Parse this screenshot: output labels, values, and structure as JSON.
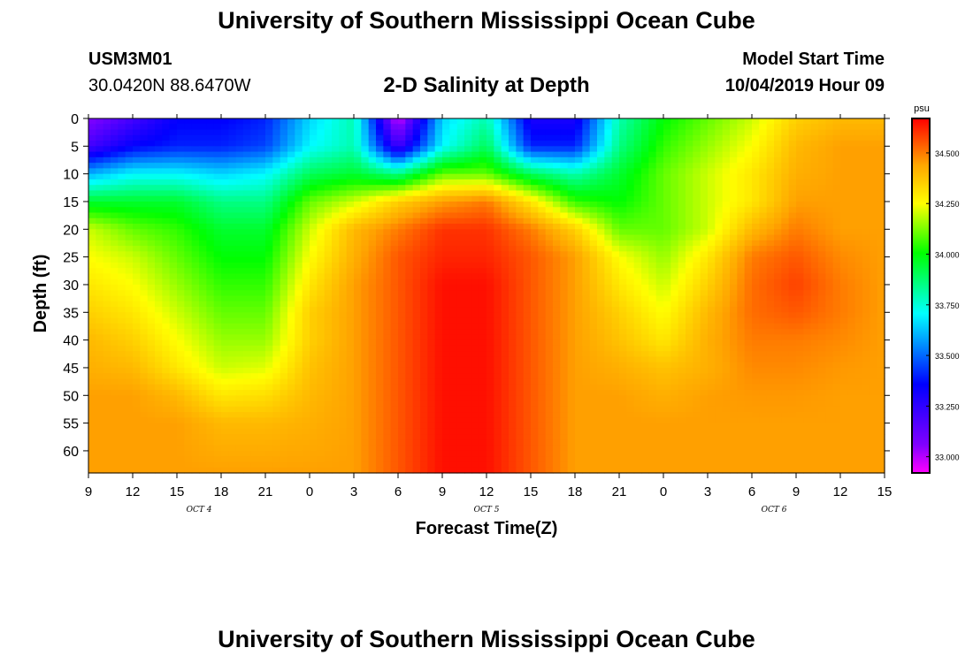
{
  "header": {
    "title": "University of Southern Mississippi Ocean Cube",
    "station_id": "USM3M01",
    "station_coords": "30.0420N 88.6470W",
    "plot_title": "2-D Salinity at Depth",
    "start_time_label": "Model Start Time",
    "start_time_value": "10/04/2019 Hour 09"
  },
  "footer": {
    "title": "University of Southern Mississippi Ocean Cube"
  },
  "colors": {
    "background": "#ffffff",
    "text": "#000000",
    "colormap": [
      "#ff00ff",
      "#8000ff",
      "#0000ff",
      "#00ffff",
      "#00ff00",
      "#ffff00",
      "#ffa500",
      "#ff0000"
    ]
  },
  "chart_data": {
    "type": "heatmap",
    "title": "2-D Salinity at Depth",
    "xlabel": "Forecast Time(Z)",
    "ylabel": "Depth (ft)",
    "x_range_hours": [
      0,
      54
    ],
    "x_ticks": [
      {
        "h": 0,
        "label": "9"
      },
      {
        "h": 3,
        "label": "12"
      },
      {
        "h": 6,
        "label": "15"
      },
      {
        "h": 9,
        "label": "18"
      },
      {
        "h": 12,
        "label": "21"
      },
      {
        "h": 15,
        "label": "0"
      },
      {
        "h": 18,
        "label": "3"
      },
      {
        "h": 21,
        "label": "6"
      },
      {
        "h": 24,
        "label": "9"
      },
      {
        "h": 27,
        "label": "12"
      },
      {
        "h": 30,
        "label": "15"
      },
      {
        "h": 33,
        "label": "18"
      },
      {
        "h": 36,
        "label": "21"
      },
      {
        "h": 39,
        "label": "0"
      },
      {
        "h": 42,
        "label": "3"
      },
      {
        "h": 45,
        "label": "6"
      },
      {
        "h": 48,
        "label": "9"
      },
      {
        "h": 51,
        "label": "12"
      },
      {
        "h": 54,
        "label": "15"
      }
    ],
    "date_labels": [
      {
        "h": 7.5,
        "label": "OCT 4"
      },
      {
        "h": 27,
        "label": "OCT 5"
      },
      {
        "h": 46.5,
        "label": "OCT 6"
      }
    ],
    "y_range_ft": [
      0,
      64
    ],
    "y_ticks": [
      "0",
      "5",
      "10",
      "15",
      "20",
      "25",
      "30",
      "35",
      "40",
      "45",
      "50",
      "55",
      "60"
    ],
    "colorbar": {
      "unit": "psu",
      "min": 32.92,
      "max": 34.67,
      "ticks": [
        "33.000",
        "33.250",
        "33.500",
        "33.750",
        "34.000",
        "34.250",
        "34.500"
      ]
    },
    "field": {
      "x_hours": [
        0,
        3,
        6,
        9,
        12,
        15,
        18,
        21,
        24,
        27,
        30,
        33,
        36,
        39,
        42,
        45,
        48,
        51,
        54
      ],
      "depth_ft": [
        0,
        5,
        10,
        15,
        20,
        25,
        30,
        35,
        40,
        45,
        50,
        55,
        64
      ],
      "salinity": [
        [
          33.05,
          33.2,
          33.35,
          33.35,
          33.4,
          33.65,
          33.8,
          32.95,
          33.65,
          33.8,
          33.3,
          33.3,
          33.8,
          34.0,
          34.1,
          34.2,
          34.35,
          34.4,
          34.4
        ],
        [
          33.2,
          33.35,
          33.4,
          33.4,
          33.45,
          33.7,
          33.8,
          33.2,
          33.7,
          33.9,
          33.4,
          33.4,
          33.85,
          34.05,
          34.15,
          34.25,
          34.4,
          34.45,
          34.45
        ],
        [
          33.6,
          33.7,
          33.7,
          33.65,
          33.7,
          33.9,
          33.95,
          33.85,
          34.1,
          34.1,
          33.9,
          33.8,
          33.95,
          34.1,
          34.2,
          34.3,
          34.42,
          34.45,
          34.45
        ],
        [
          33.95,
          33.95,
          33.95,
          33.85,
          33.85,
          34.1,
          34.2,
          34.35,
          34.45,
          34.5,
          34.3,
          34.05,
          34.0,
          34.1,
          34.2,
          34.3,
          34.45,
          34.45,
          34.45
        ],
        [
          34.2,
          34.1,
          34.05,
          33.95,
          33.95,
          34.2,
          34.4,
          34.5,
          34.6,
          34.6,
          34.5,
          34.35,
          34.1,
          34.1,
          34.2,
          34.4,
          34.5,
          34.45,
          34.45
        ],
        [
          34.25,
          34.2,
          34.1,
          34.0,
          34.0,
          34.25,
          34.42,
          34.55,
          34.62,
          34.62,
          34.55,
          34.45,
          34.25,
          34.15,
          34.3,
          34.5,
          34.55,
          34.48,
          34.45
        ],
        [
          34.3,
          34.25,
          34.15,
          34.05,
          34.05,
          34.3,
          34.45,
          34.55,
          34.65,
          34.65,
          34.55,
          34.45,
          34.3,
          34.2,
          34.35,
          34.52,
          34.58,
          34.5,
          34.45
        ],
        [
          34.35,
          34.3,
          34.2,
          34.1,
          34.1,
          34.35,
          34.45,
          34.55,
          34.65,
          34.65,
          34.55,
          34.45,
          34.35,
          34.25,
          34.4,
          34.52,
          34.55,
          34.5,
          34.45
        ],
        [
          34.4,
          34.35,
          34.25,
          34.15,
          34.15,
          34.35,
          34.45,
          34.55,
          34.65,
          34.65,
          34.55,
          34.45,
          34.38,
          34.3,
          34.42,
          34.5,
          34.5,
          34.48,
          34.45
        ],
        [
          34.42,
          34.4,
          34.3,
          34.2,
          34.22,
          34.38,
          34.45,
          34.55,
          34.65,
          34.65,
          34.55,
          34.45,
          34.42,
          34.38,
          34.42,
          34.48,
          34.48,
          34.46,
          34.45
        ],
        [
          34.45,
          34.45,
          34.4,
          34.3,
          34.32,
          34.4,
          34.45,
          34.55,
          34.65,
          34.65,
          34.55,
          34.45,
          34.45,
          34.42,
          34.45,
          34.46,
          34.46,
          34.45,
          34.45
        ],
        [
          34.45,
          34.45,
          34.45,
          34.4,
          34.4,
          34.42,
          34.45,
          34.55,
          34.65,
          34.65,
          34.55,
          34.45,
          34.45,
          34.45,
          34.45,
          34.45,
          34.45,
          34.45,
          34.45
        ],
        [
          34.45,
          34.45,
          34.45,
          34.45,
          34.45,
          34.45,
          34.45,
          34.55,
          34.65,
          34.65,
          34.55,
          34.45,
          34.45,
          34.45,
          34.45,
          34.45,
          34.45,
          34.45,
          34.45
        ]
      ]
    }
  }
}
